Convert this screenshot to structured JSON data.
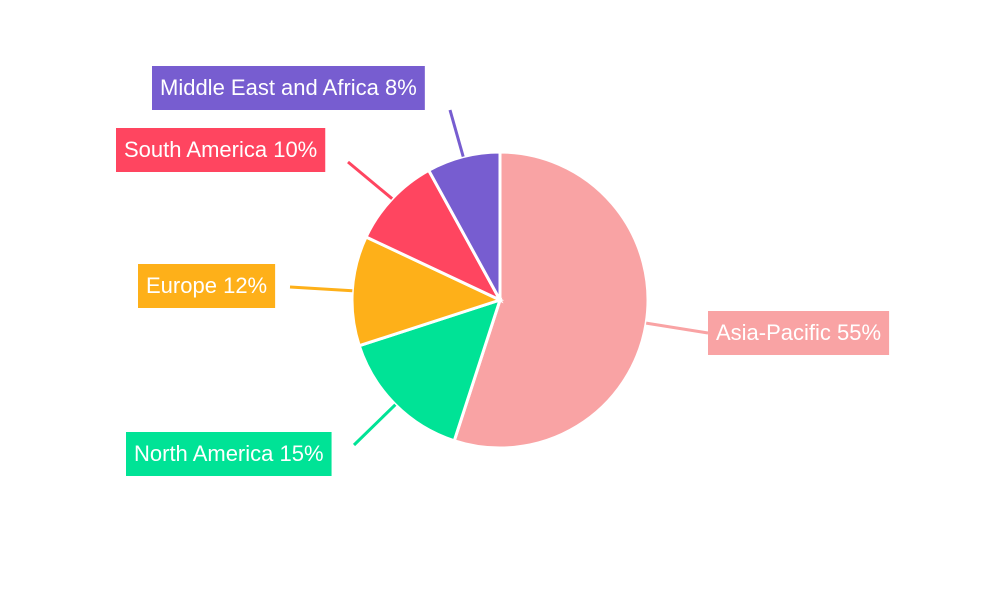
{
  "chart_data": {
    "type": "pie",
    "categories": [
      "Asia-Pacific",
      "North America",
      "Europe",
      "South America",
      "Middle East and Africa"
    ],
    "values": [
      55,
      15,
      12,
      10,
      8
    ],
    "value_labels": [
      "55%",
      "15%",
      "12%",
      "10%",
      "8%"
    ],
    "colors": [
      "#f9a3a4",
      "#00e396",
      "#feb019",
      "#ff4560",
      "#775dd0"
    ]
  }
}
